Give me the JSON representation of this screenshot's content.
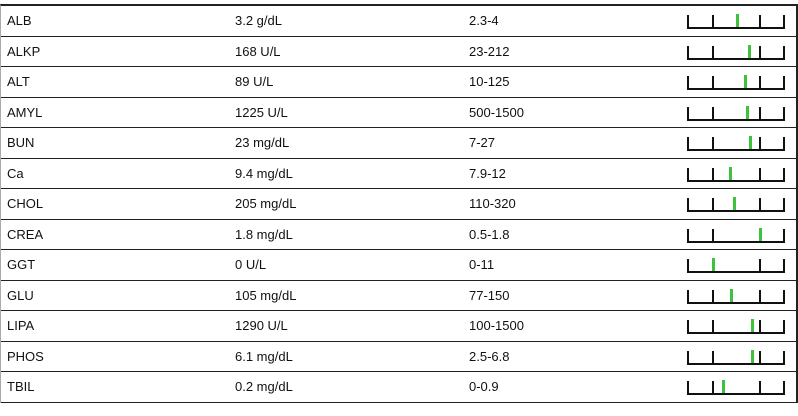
{
  "rows": [
    {
      "test": "ALB",
      "value": "3.2 g/dL",
      "range": "2.3-4",
      "low": 2.3,
      "high": 4,
      "reading": 3.2
    },
    {
      "test": "ALKP",
      "value": "168 U/L",
      "range": "23-212",
      "low": 23,
      "high": 212,
      "reading": 168
    },
    {
      "test": "ALT",
      "value": "89 U/L",
      "range": "10-125",
      "low": 10,
      "high": 125,
      "reading": 89
    },
    {
      "test": "AMYL",
      "value": "1225 U/L",
      "range": "500-1500",
      "low": 500,
      "high": 1500,
      "reading": 1225
    },
    {
      "test": "BUN",
      "value": "23 mg/dL",
      "range": "7-27",
      "low": 7,
      "high": 27,
      "reading": 23
    },
    {
      "test": "Ca",
      "value": "9.4 mg/dL",
      "range": "7.9-12",
      "low": 7.9,
      "high": 12,
      "reading": 9.4
    },
    {
      "test": "CHOL",
      "value": "205 mg/dL",
      "range": "110-320",
      "low": 110,
      "high": 320,
      "reading": 205
    },
    {
      "test": "CREA",
      "value": "1.8 mg/dL",
      "range": "0.5-1.8",
      "low": 0.5,
      "high": 1.8,
      "reading": 1.8
    },
    {
      "test": "GGT",
      "value": "0 U/L",
      "range": "0-11",
      "low": 0,
      "high": 11,
      "reading": 0
    },
    {
      "test": "GLU",
      "value": "105 mg/dL",
      "range": "77-150",
      "low": 77,
      "high": 150,
      "reading": 105
    },
    {
      "test": "LIPA",
      "value": "1290 U/L",
      "range": "100-1500",
      "low": 100,
      "high": 1500,
      "reading": 1290
    },
    {
      "test": "PHOS",
      "value": "6.1 mg/dL",
      "range": "2.5-6.8",
      "low": 2.5,
      "high": 6.8,
      "reading": 6.1
    },
    {
      "test": "TBIL",
      "value": "0.2 mg/dL",
      "range": "0-0.9",
      "low": 0,
      "high": 0.9,
      "reading": 0.2
    }
  ],
  "colors": {
    "marker": "#3cc23c",
    "tick": "#111111",
    "border": "#222222"
  }
}
